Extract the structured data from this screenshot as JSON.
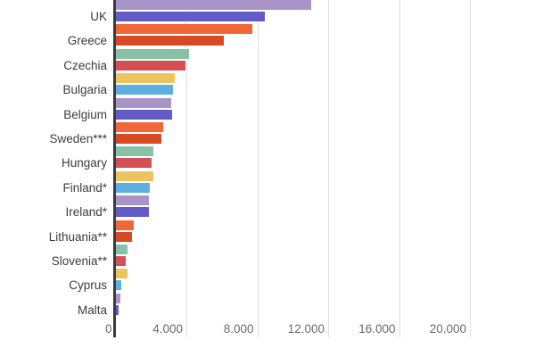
{
  "chart_data": {
    "type": "bar",
    "orientation": "horizontal",
    "title": "",
    "xlabel": "",
    "ylabel": "",
    "grid": "vertical",
    "legend": "none-visible",
    "note": "chart cropped at top; two bars per country, first (lighter) bar above the labeled bar",
    "categories": [
      "UK",
      "Greece",
      "Czechia",
      "Bulgaria",
      "Belgium",
      "Sweden***",
      "Hungary",
      "Finland*",
      "Ireland*",
      "Lithuania**",
      "Slovenia**",
      "Cyprus",
      "Malta"
    ],
    "series": [
      {
        "name": "bar-1",
        "values": [
          11000,
          7700,
          4150,
          3300,
          3130,
          2650,
          2100,
          2100,
          1870,
          1030,
          640,
          630,
          260
        ]
      },
      {
        "name": "bar-2",
        "values": [
          8400,
          6100,
          3900,
          3200,
          3160,
          2570,
          2030,
          1920,
          1870,
          890,
          560,
          320,
          140
        ]
      }
    ],
    "x_ticks": [
      {
        "label": "0",
        "value": 0
      },
      {
        "label": "4.000",
        "value": 4000
      },
      {
        "label": "8.000",
        "value": 8000
      },
      {
        "label": "12.000",
        "value": 12000
      },
      {
        "label": "16.000",
        "value": 16000
      },
      {
        "label": "20.000",
        "value": 20000
      }
    ],
    "xlim": [
      0,
      23600
    ]
  },
  "colors": {
    "background": "#ffffff",
    "axis_line": "#3b3a40",
    "gridline": "#dedede",
    "category_label_text": "#3c3c3c",
    "tick_label_text": "#6b6b6b",
    "pair_palette": [
      {
        "first": "#a994c8",
        "second": "#635bc6"
      },
      {
        "first": "#f2673a",
        "second": "#d84a24"
      },
      {
        "first": "#87c2a6",
        "second": "#d55055"
      },
      {
        "first": "#edc35e",
        "second": "#5bb0e0"
      }
    ]
  }
}
